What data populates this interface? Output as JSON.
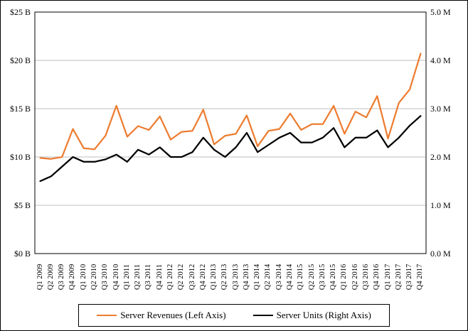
{
  "chart_data": {
    "type": "line",
    "title": "",
    "grid": "horizontal",
    "legend_position": "bottom",
    "categories": [
      "Q1 2009",
      "Q2 2009",
      "Q3 2009",
      "Q4 2009",
      "Q1 2010",
      "Q2 2010",
      "Q3 2010",
      "Q4 2010",
      "Q1 2011",
      "Q2 2011",
      "Q3 2011",
      "Q4 2011",
      "Q1 2012",
      "Q2 2012",
      "Q3 2012",
      "Q4 2012",
      "Q1 2013",
      "Q2 2013",
      "Q3 2013",
      "Q4 2013",
      "Q1 2014",
      "Q2 2014",
      "Q3 2014",
      "Q4 2014",
      "Q1 2015",
      "Q2 2015",
      "Q3 2015",
      "Q4 2015",
      "Q1 2016",
      "Q2 2016",
      "Q3 2016",
      "Q4 2016",
      "Q1 2017",
      "Q2 2017",
      "Q3 2017",
      "Q4 2017"
    ],
    "series": [
      {
        "name": "Server Revenues (Left Axis)",
        "axis": "left",
        "unit": "billion USD",
        "color": "#ED7D31",
        "values": [
          9.9,
          9.8,
          10.0,
          12.9,
          10.9,
          10.8,
          12.2,
          15.3,
          12.1,
          13.2,
          12.8,
          14.2,
          11.8,
          12.6,
          12.7,
          14.9,
          11.3,
          12.2,
          12.4,
          14.3,
          11.1,
          12.7,
          12.9,
          14.5,
          12.8,
          13.4,
          13.4,
          15.3,
          12.4,
          14.7,
          14.1,
          16.3,
          11.9,
          15.6,
          17.0,
          20.7
        ]
      },
      {
        "name": "Server Units (Right Axis)",
        "axis": "right",
        "unit": "million units",
        "color": "#000000",
        "values": [
          1.5,
          1.6,
          1.8,
          2.0,
          1.9,
          1.9,
          1.95,
          2.05,
          1.9,
          2.15,
          2.05,
          2.2,
          2.0,
          2.0,
          2.1,
          2.4,
          2.15,
          2.0,
          2.2,
          2.5,
          2.1,
          2.25,
          2.4,
          2.5,
          2.3,
          2.3,
          2.4,
          2.6,
          2.2,
          2.4,
          2.4,
          2.55,
          2.2,
          2.4,
          2.65,
          2.85
        ]
      }
    ],
    "left_axis": {
      "min": 0,
      "max": 25,
      "ticks": [
        "$0 B",
        "$5 B",
        "$10 B",
        "$15 B",
        "$20 B",
        "$25 B"
      ]
    },
    "right_axis": {
      "min": 0,
      "max": 5,
      "ticks": [
        "0.0 M",
        "1.0 M",
        "2.0 M",
        "3.0 M",
        "4.0 M",
        "5.0 M"
      ]
    },
    "colors": {
      "revenues_line": "#ED7D31",
      "units_line": "#000000",
      "gridline": "#BFBFBF",
      "plot_border": "#000000",
      "background": "#FFFFFF"
    }
  }
}
